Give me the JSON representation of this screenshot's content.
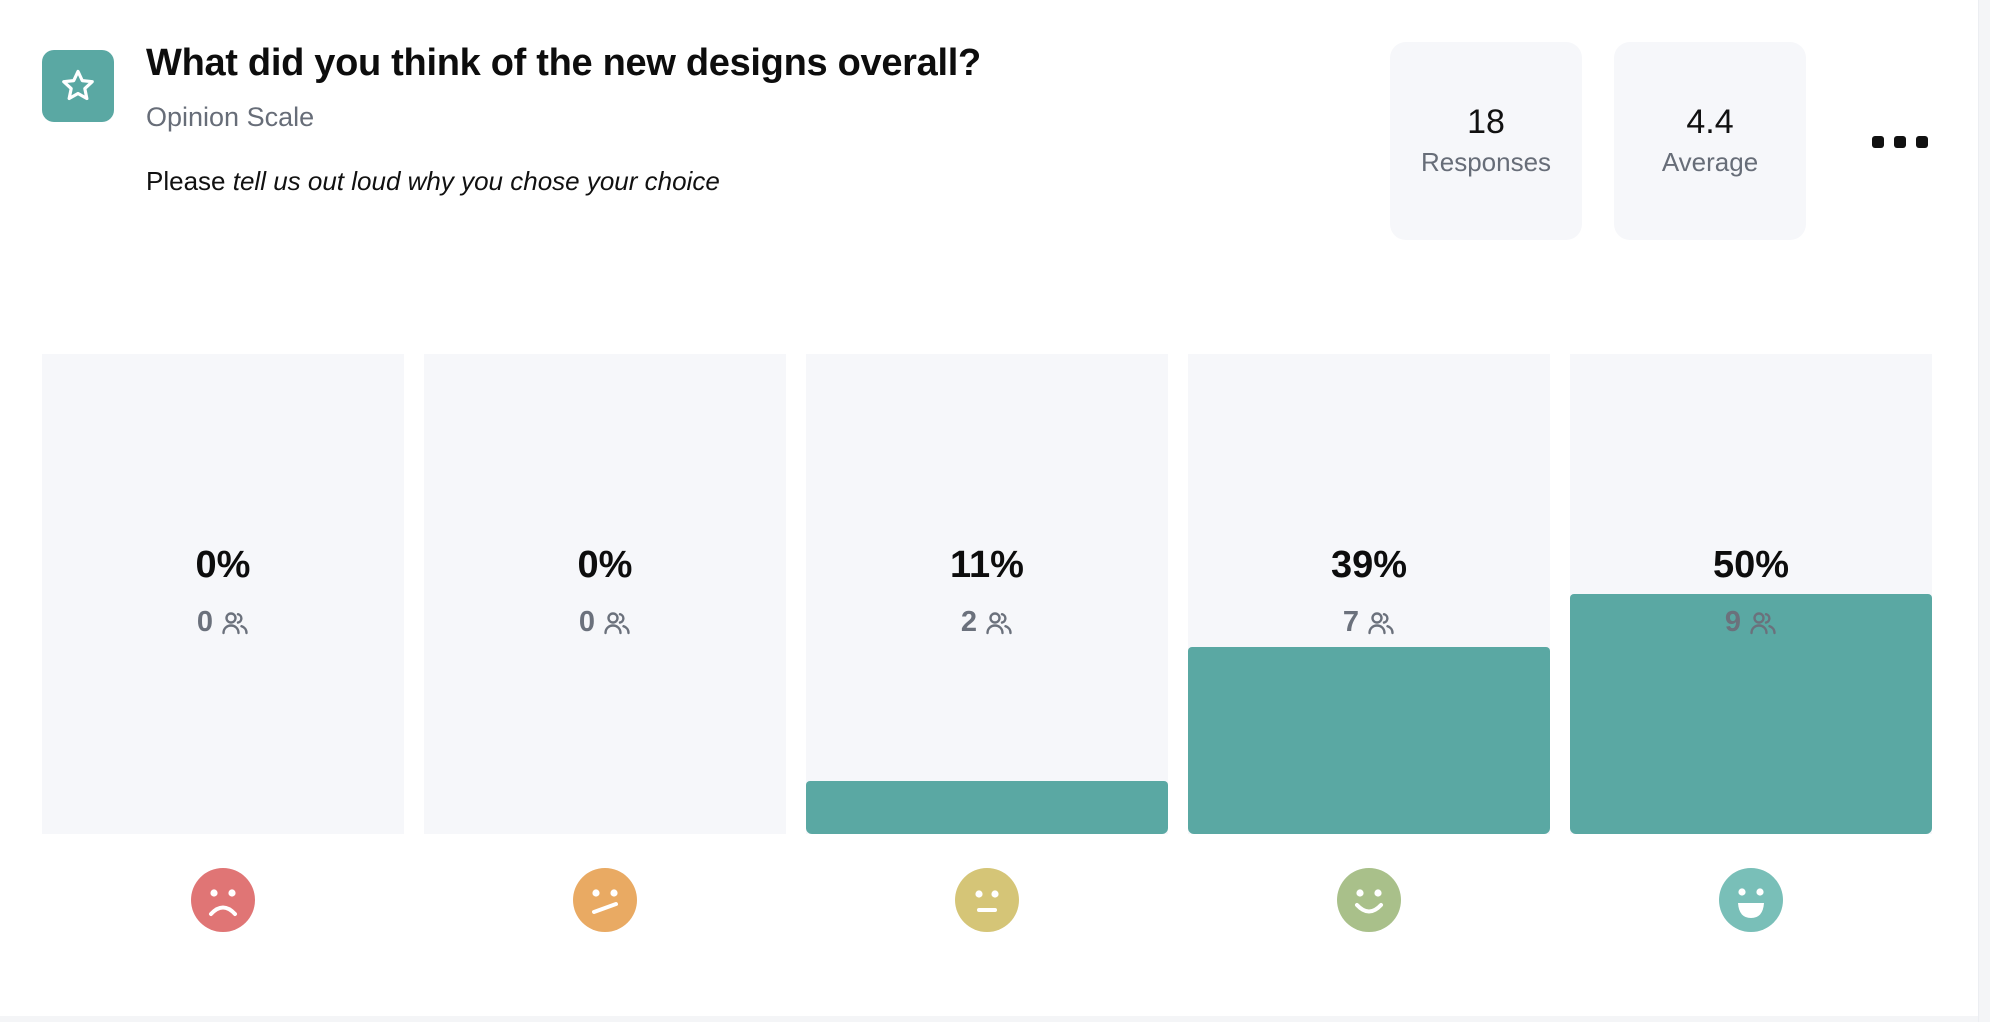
{
  "question": {
    "title": "What did you think of the new designs overall?",
    "type": "Opinion Scale",
    "description_prefix": "Please",
    "description_emphasis": "tell us out loud why you chose your choice",
    "icon": "star-icon"
  },
  "stats": {
    "responses_value": "18",
    "responses_label": "Responses",
    "average_value": "4.4",
    "average_label": "Average"
  },
  "colors": {
    "accent": "#5aa8a3",
    "bar_background": "#f6f7fa",
    "face_1": "#e07575",
    "face_2": "#e9aa63",
    "face_3": "#d5c577",
    "face_4": "#a9c08a",
    "face_5": "#79bfb8"
  },
  "chart_data": {
    "type": "bar",
    "categories": [
      "1",
      "2",
      "3",
      "4",
      "5"
    ],
    "values": [
      0,
      0,
      11,
      39,
      50
    ],
    "counts": [
      0,
      0,
      2,
      7,
      9
    ],
    "labels": [
      "0%",
      "0%",
      "11%",
      "39%",
      "50%"
    ],
    "count_labels": [
      "0",
      "0",
      "2",
      "7",
      "9"
    ],
    "category_icons": [
      "very-sad-face-icon",
      "confused-face-icon",
      "neutral-face-icon",
      "smile-face-icon",
      "grin-face-icon"
    ],
    "ylim": [
      0,
      100
    ],
    "grid": false
  }
}
